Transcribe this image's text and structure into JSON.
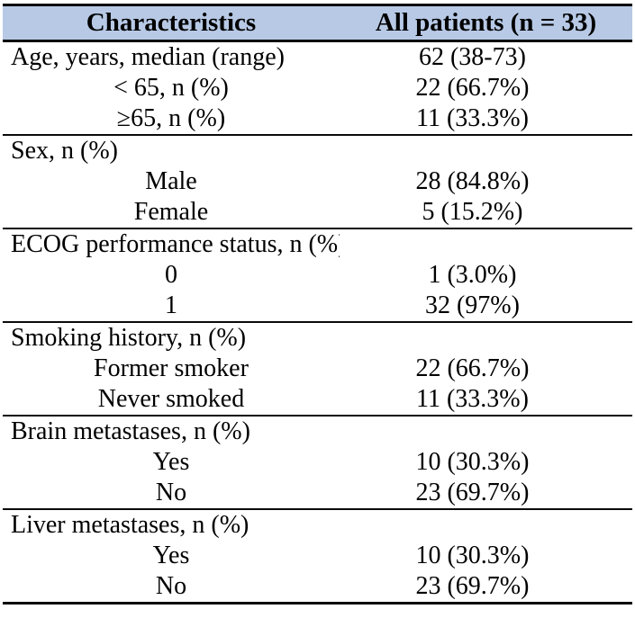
{
  "table": {
    "header": {
      "col1": "Characteristics",
      "col2": "All patients (n = 33)",
      "background_color": "#b7c9e5"
    },
    "border_color": "#0a0a0a",
    "sections": [
      {
        "rows": [
          {
            "label": "Age, years, median (range)",
            "value": "62 (38-73)",
            "indent": false
          },
          {
            "label": "< 65, n (%)",
            "value": "22 (66.7%)",
            "indent": true
          },
          {
            "label": "≥65, n (%)",
            "value": "11 (33.3%)",
            "indent": true
          }
        ]
      },
      {
        "rows": [
          {
            "label": "Sex, n (%)",
            "value": "",
            "indent": false
          },
          {
            "label": "Male",
            "value": "28 (84.8%)",
            "indent": true
          },
          {
            "label": "Female",
            "value": "5 (15.2%)",
            "indent": true
          }
        ]
      },
      {
        "rows": [
          {
            "label": "ECOG performance status, n (%)",
            "value": "",
            "indent": false
          },
          {
            "label": "0",
            "value": "1 (3.0%)",
            "indent": true
          },
          {
            "label": "1",
            "value": "32 (97%)",
            "indent": true
          }
        ]
      },
      {
        "rows": [
          {
            "label": "Smoking history, n (%)",
            "value": "",
            "indent": false
          },
          {
            "label": "Former smoker",
            "value": "22 (66.7%)",
            "indent": true
          },
          {
            "label": "Never smoked",
            "value": "11 (33.3%)",
            "indent": true
          }
        ]
      },
      {
        "rows": [
          {
            "label": "Brain metastases, n (%)",
            "value": "",
            "indent": false
          },
          {
            "label": "Yes",
            "value": "10 (30.3%)",
            "indent": true
          },
          {
            "label": "No",
            "value": "23 (69.7%)",
            "indent": true
          }
        ]
      },
      {
        "rows": [
          {
            "label": "Liver metastases, n (%)",
            "value": "",
            "indent": false
          },
          {
            "label": "Yes",
            "value": "10 (30.3%)",
            "indent": true
          },
          {
            "label": "No",
            "value": "23 (69.7%)",
            "indent": true
          }
        ]
      }
    ]
  }
}
